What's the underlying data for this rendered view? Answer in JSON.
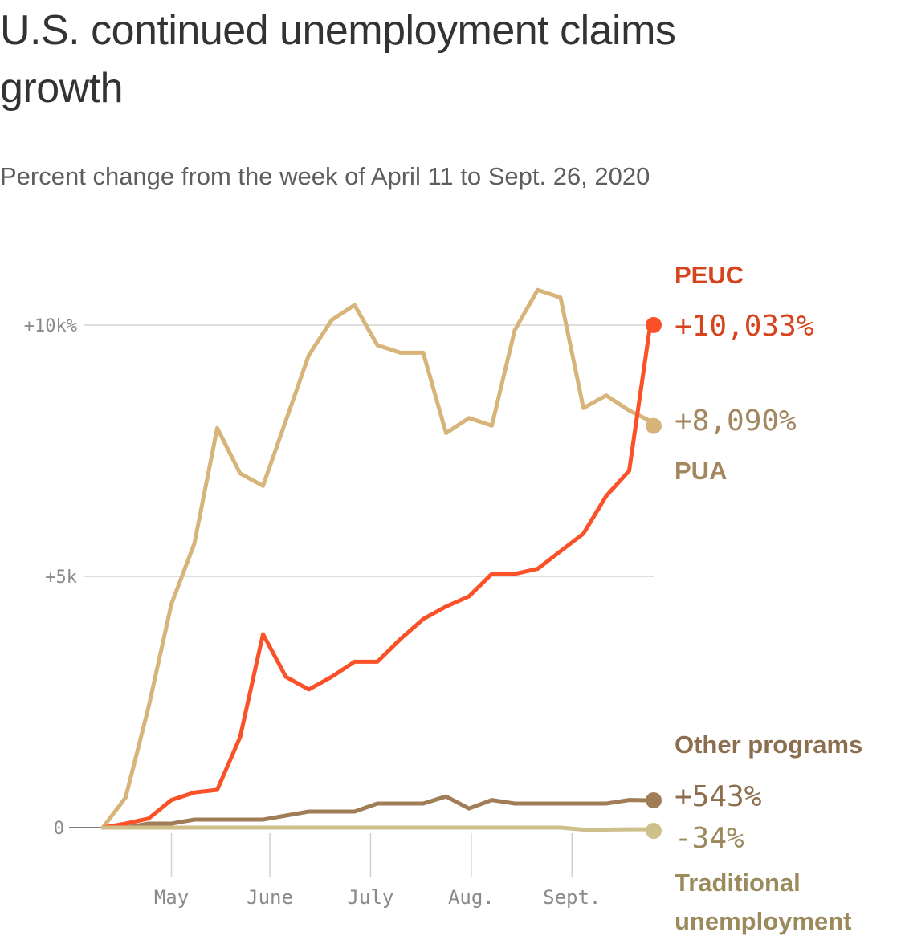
{
  "title": "U.S. continued unemployment claims growth",
  "subtitle": "Percent change from the week of April 11 to Sept. 26, 2020",
  "chart_data": {
    "type": "line",
    "y_unit": "percent change",
    "ylim": [
      -1000,
      11500
    ],
    "y_ticks": [
      {
        "value": 0,
        "label": "0"
      },
      {
        "value": 5000,
        "label": "+5k"
      },
      {
        "value": 10000,
        "label": "+10k%"
      }
    ],
    "x_ticks": [
      {
        "week": 3,
        "label": "May"
      },
      {
        "week": 7.3,
        "label": "June"
      },
      {
        "week": 11.7,
        "label": "July"
      },
      {
        "week": 16.1,
        "label": "Aug."
      },
      {
        "week": 20.5,
        "label": "Sept."
      }
    ],
    "grid": "horizontal",
    "series": [
      {
        "name": "PUA",
        "color": "#d6b47a",
        "end_value_label": "+8,090%",
        "label_color": "#a38760",
        "values": [
          0,
          600,
          2400,
          4450,
          5650,
          7950,
          7050,
          6800,
          8100,
          9400,
          10100,
          10400,
          9600,
          9450,
          9450,
          7850,
          8150,
          8000,
          9900,
          10700,
          10550,
          8350,
          8600,
          8300,
          8090
        ]
      },
      {
        "name": "PEUC",
        "color": "#fa5128",
        "end_value_label": "+10,033%",
        "label_color": "#d6431c",
        "values": [
          0,
          80,
          180,
          550,
          700,
          750,
          1800,
          3850,
          3000,
          2750,
          3000,
          3300,
          3300,
          3750,
          4150,
          4400,
          4600,
          5050,
          5050,
          5150,
          5500,
          5850,
          6600,
          7100,
          10033
        ]
      },
      {
        "name": "Other programs",
        "color": "#a07d57",
        "end_value_label": "+543%",
        "label_color": "#8c6d4e",
        "values": [
          0,
          0,
          80,
          80,
          160,
          160,
          160,
          160,
          240,
          320,
          320,
          320,
          480,
          480,
          480,
          620,
          380,
          550,
          480,
          480,
          480,
          480,
          480,
          550,
          543
        ]
      },
      {
        "name": "Traditional unemployment",
        "color": "#cfc08b",
        "end_value_label": "-34%",
        "label_color": "#9a8a5c",
        "values": [
          0,
          0,
          0,
          0,
          0,
          0,
          0,
          0,
          0,
          0,
          0,
          0,
          0,
          0,
          0,
          0,
          0,
          0,
          0,
          0,
          0,
          -40,
          -40,
          -34,
          -34
        ]
      }
    ]
  }
}
